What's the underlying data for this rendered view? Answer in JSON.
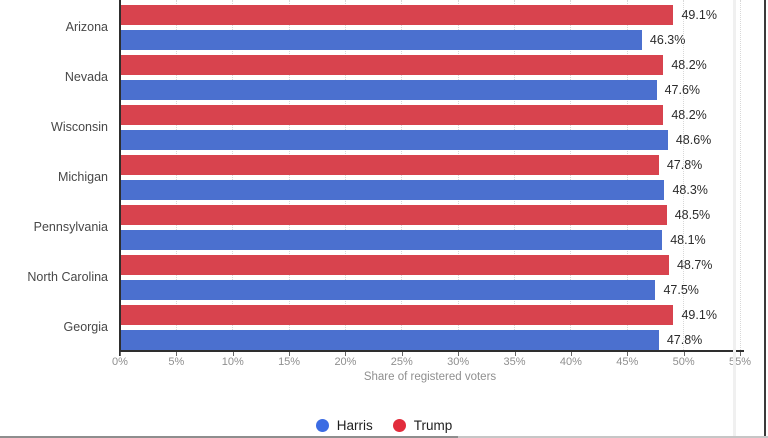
{
  "chart_data": {
    "type": "bar",
    "orientation": "horizontal",
    "categories": [
      "Arizona",
      "Nevada",
      "Wisconsin",
      "Michigan",
      "Pennsylvania",
      "North Carolina",
      "Georgia"
    ],
    "series": [
      {
        "name": "Harris",
        "color": "#4b70cf",
        "values": [
          46.3,
          47.6,
          48.6,
          48.3,
          48.1,
          47.5,
          47.8
        ],
        "labels": [
          "46.3%",
          "47.6%",
          "48.6%",
          "48.3%",
          "48.1%",
          "47.5%",
          "47.8%"
        ]
      },
      {
        "name": "Trump",
        "color": "#d8434e",
        "values": [
          49.1,
          48.2,
          48.2,
          47.8,
          48.5,
          48.7,
          49.1
        ],
        "labels": [
          "49.1%",
          "48.2%",
          "48.2%",
          "47.8%",
          "48.5%",
          "48.7%",
          "49.1%"
        ]
      }
    ],
    "bar_order_top_to_bottom": [
      "Trump",
      "Harris"
    ],
    "title": "",
    "xlabel": "Share of registered voters",
    "ylabel": "",
    "xlim": [
      0,
      55
    ],
    "x_ticks": [
      "0%",
      "5%",
      "10%",
      "15%",
      "20%",
      "25%",
      "30%",
      "35%",
      "40%",
      "45%",
      "50%",
      "55%"
    ],
    "grid": "vertical dotted gridlines on",
    "legend_position": "bottom"
  },
  "x_axis": {
    "title": "Share of registered voters"
  },
  "legend": {
    "items": [
      {
        "label": "Harris",
        "color": "#3c6ce3"
      },
      {
        "label": "Trump",
        "color": "#e22c3c"
      }
    ]
  },
  "colors": {
    "bar_red": "#d8434e",
    "bar_blue": "#4b70cf",
    "legend_blue": "#3c6ce3",
    "legend_red": "#e22c3c",
    "axis_line": "#2e2e2e",
    "grid_line": "#d8d8d8",
    "tick_label": "#8f8f8f",
    "axis_title": "#8f8f8f",
    "state_label": "#484848",
    "value_label": "#2b2b2b",
    "background": "#ffffff"
  }
}
